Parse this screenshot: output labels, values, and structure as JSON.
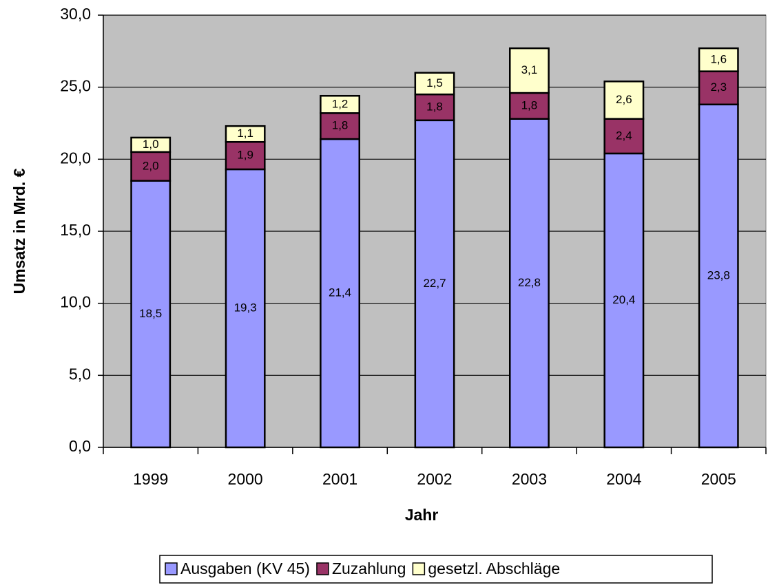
{
  "chart_data": {
    "type": "stacked_bar",
    "x_label": "Jahr",
    "y_label": "Umsatz in Mrd. €",
    "categories": [
      "1999",
      "2000",
      "2001",
      "2002",
      "2003",
      "2004",
      "2005"
    ],
    "series": [
      {
        "name": "Ausgaben (KV 45)",
        "color": "#9999ff",
        "values": [
          18.5,
          19.3,
          21.4,
          22.7,
          22.8,
          20.4,
          23.8
        ],
        "value_labels": [
          "18,5",
          "19,3",
          "21,4",
          "22,7",
          "22,8",
          "20,4",
          "23,8"
        ]
      },
      {
        "name": "Zuzahlung",
        "color": "#993366",
        "values": [
          2.0,
          1.9,
          1.8,
          1.8,
          1.8,
          2.4,
          2.3
        ],
        "value_labels": [
          "2,0",
          "1,9",
          "1,8",
          "1,8",
          "1,8",
          "2,4",
          "2,3"
        ]
      },
      {
        "name": "gesetzl. Abschläge",
        "color": "#ffffcc",
        "values": [
          1.0,
          1.1,
          1.2,
          1.5,
          3.1,
          2.6,
          1.6
        ],
        "value_labels": [
          "1,0",
          "1,1",
          "1,2",
          "1,5",
          "3,1",
          "2,6",
          "1,6"
        ]
      }
    ],
    "ylim": [
      0,
      30
    ],
    "yticks": [
      {
        "value": 0,
        "label": "0,0"
      },
      {
        "value": 5,
        "label": "5,0"
      },
      {
        "value": 10,
        "label": "10,0"
      },
      {
        "value": 15,
        "label": "15,0"
      },
      {
        "value": 20,
        "label": "20,0"
      },
      {
        "value": 25,
        "label": "25,0"
      },
      {
        "value": 30,
        "label": "30,0"
      }
    ],
    "grid": true,
    "background": "#c0c0c0",
    "legend": "bottom"
  }
}
